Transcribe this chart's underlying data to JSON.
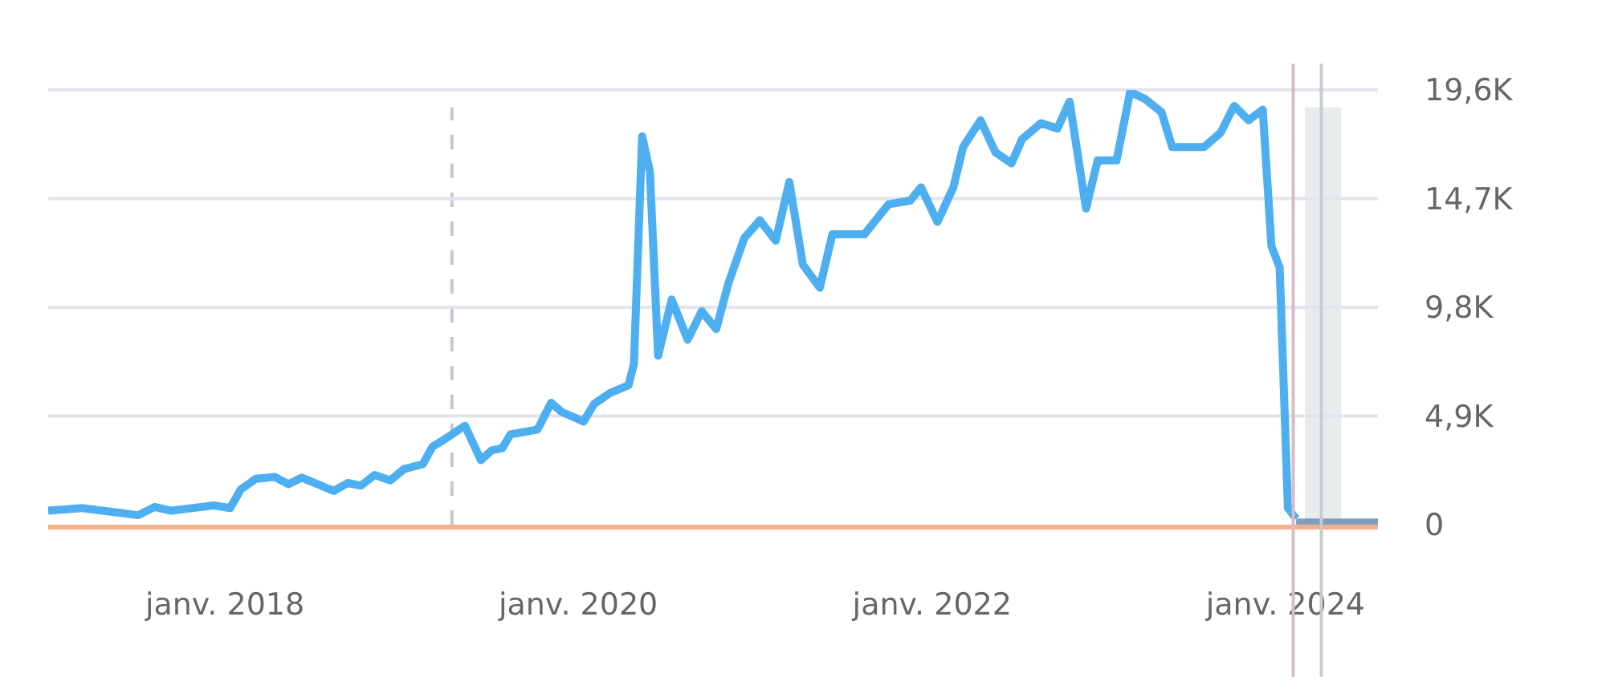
{
  "chart_data": {
    "type": "line",
    "x": [
      "2017-01-01",
      "2017-03-12",
      "2017-07-06",
      "2017-08-09",
      "2017-09-12",
      "2017-12-09",
      "2018-01-12",
      "2018-02-03",
      "2018-03-06",
      "2018-04-14",
      "2018-05-12",
      "2018-06-09",
      "2018-08-14",
      "2018-09-12",
      "2018-10-09",
      "2018-11-06",
      "2018-12-09",
      "2019-01-06",
      "2019-02-14",
      "2019-03-06",
      "2019-03-28",
      "2019-05-12",
      "2019-06-14",
      "2019-07-06",
      "2019-07-28",
      "2019-08-14",
      "2019-10-09",
      "2019-11-06",
      "2019-11-28",
      "2020-01-12",
      "2020-02-03",
      "2020-03-06",
      "2020-04-14",
      "2020-04-25",
      "2020-05-12",
      "2020-05-28",
      "2020-06-14",
      "2020-07-12",
      "2020-08-14",
      "2020-09-12",
      "2020-10-12",
      "2020-11-06",
      "2020-12-09",
      "2021-01-10",
      "2021-02-12",
      "2021-03-12",
      "2021-04-09",
      "2021-05-14",
      "2021-06-09",
      "2021-08-14",
      "2021-10-03",
      "2021-11-17",
      "2021-12-09",
      "2022-01-12",
      "2022-02-14",
      "2022-03-06",
      "2022-04-11",
      "2022-05-12",
      "2022-06-14",
      "2022-07-06",
      "2022-08-14",
      "2022-09-17",
      "2022-10-12",
      "2022-11-15",
      "2022-12-09",
      "2023-01-17",
      "2023-02-14",
      "2023-03-17",
      "2023-04-20",
      "2023-05-12",
      "2023-07-17",
      "2023-08-20",
      "2023-09-17",
      "2023-10-17",
      "2023-11-15",
      "2023-12-03",
      "2023-12-20",
      "2024-01-06",
      "2024-01-23"
    ],
    "series": [
      {
        "color": "#4daef0",
        "values": [
          630,
          750,
          430,
          800,
          630,
          870,
          750,
          1590,
          2070,
          2150,
          1830,
          2120,
          1520,
          1880,
          1760,
          2240,
          2000,
          2510,
          2730,
          3520,
          3810,
          4460,
          2910,
          3350,
          3450,
          4070,
          4290,
          5500,
          5080,
          4650,
          5450,
          5930,
          6290,
          7250,
          17500,
          15930,
          7620,
          10150,
          8340,
          9620,
          8820,
          10870,
          12920,
          13720,
          12800,
          15450,
          11720,
          10680,
          13090,
          13090,
          14440,
          14610,
          15210,
          13650,
          15210,
          17020,
          18230,
          16780,
          16290,
          17380,
          18100,
          17860,
          19070,
          14250,
          16420,
          16420,
          19500,
          19190,
          18590,
          17020,
          17020,
          17670,
          18880,
          18230,
          18710,
          12560,
          11590,
          750,
          270
        ]
      },
      {
        "color": "#7f9fbe",
        "x": [
          "2024-01-23",
          "2024-07-10"
        ],
        "values": [
          100,
          100
        ]
      }
    ],
    "xlim": [
      "2017-01-01",
      "2024-07-10"
    ],
    "xticks": [
      {
        "value": "2018-01-01",
        "label": "janv. 2018"
      },
      {
        "value": "2020-01-01",
        "label": "janv. 2020"
      },
      {
        "value": "2022-01-01",
        "label": "janv. 2022"
      },
      {
        "value": "2024-01-01",
        "label": "janv. 2024"
      }
    ],
    "ylim": [
      0,
      19600
    ],
    "yticks": [
      0,
      {
        "value": 4900,
        "label": "4,9K"
      },
      {
        "value": 9800,
        "label": "9,8K"
      },
      {
        "value": 14700,
        "label": "14,7K"
      },
      {
        "value": 19600,
        "label": "19,6K"
      }
    ],
    "ref_lines": [
      {
        "axis": "x",
        "value": "2019-04-15",
        "color": "#c8c8c8",
        "line_style": "dashed"
      },
      {
        "axis": "x",
        "value": "2024-01-17",
        "color": "#d9bcc3",
        "line_style": "solid"
      },
      {
        "axis": "x",
        "value": "2024-03-15",
        "color": "#c5cdd0",
        "line_style": "solid"
      }
    ],
    "bands": [
      {
        "axis": "x",
        "from": "2024-02-10",
        "to": "2024-04-25",
        "color": "#e8eced"
      }
    ],
    "grid": "y",
    "marker": "none",
    "line_style": "solid"
  }
}
